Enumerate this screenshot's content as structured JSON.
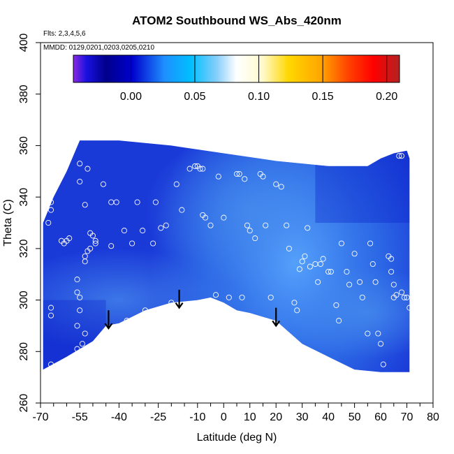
{
  "chart_data": {
    "type": "heatmap",
    "title": "ATOM2 Southbound WS_Abs_420nm",
    "annotations": {
      "flights": "Flts: 2,3,4,5,6",
      "dates": "MMDD: 0129,0201,0203,0205,0210"
    },
    "xlabel": "Latitude (deg N)",
    "ylabel": "Theta (C)",
    "xlim": [
      -70,
      80
    ],
    "ylim": [
      260,
      400
    ],
    "x_ticks": [
      -70,
      -55,
      -40,
      -25,
      -10,
      0,
      10,
      20,
      30,
      40,
      50,
      60,
      70,
      80
    ],
    "x_tick_labels": [
      "-70",
      "-55",
      "-40",
      "-25",
      "-10",
      "0",
      "10",
      "20",
      "30",
      "40",
      "50",
      "60",
      "70",
      "80"
    ],
    "x_minor_ticks": [
      -65,
      -60,
      -50,
      -45,
      -35,
      -30,
      -20,
      -15,
      -5,
      5,
      15,
      25,
      35,
      45,
      55,
      65,
      75
    ],
    "y_ticks": [
      260,
      280,
      300,
      320,
      340,
      360,
      380,
      400
    ],
    "y_tick_labels": [
      "260",
      "280",
      "300",
      "320",
      "340",
      "360",
      "380",
      "400"
    ],
    "colorbar": {
      "range": [
        -0.045,
        0.21
      ],
      "ticks": [
        0.0,
        0.05,
        0.1,
        0.15,
        0.2
      ],
      "tick_labels": [
        "0.00",
        "0.05",
        "0.10",
        "0.15",
        "0.20"
      ],
      "colors": [
        "#8a2be2",
        "#1a10e0",
        "#00008b",
        "#0000cd",
        "#1e90ff",
        "#00bfff",
        "#87cefa",
        "#ffffff",
        "#fffacd",
        "#ffd700",
        "#ffa500",
        "#ff4500",
        "#ff0000",
        "#b22222"
      ]
    },
    "field": {
      "base_color": "#1a3ad8",
      "light_region_color": "#3a8cf0",
      "upper_boundary": [
        [
          -69,
          330
        ],
        [
          -65,
          340
        ],
        [
          -60,
          350
        ],
        [
          -55,
          362
        ],
        [
          -50,
          362
        ],
        [
          -40,
          362
        ],
        [
          -20,
          360
        ],
        [
          0,
          357
        ],
        [
          20,
          354
        ],
        [
          40,
          352
        ],
        [
          55,
          352
        ],
        [
          60,
          355
        ],
        [
          65,
          357
        ],
        [
          70,
          358
        ],
        [
          71,
          355
        ]
      ],
      "lower_boundary": [
        [
          -69,
          273
        ],
        [
          -60,
          278
        ],
        [
          -50,
          284
        ],
        [
          -45,
          290
        ],
        [
          -40,
          291
        ],
        [
          -30,
          296
        ],
        [
          -20,
          299
        ],
        [
          -10,
          300
        ],
        [
          -5,
          301
        ],
        [
          0,
          299
        ],
        [
          5,
          296
        ],
        [
          10,
          295
        ],
        [
          20,
          292
        ],
        [
          30,
          283
        ],
        [
          40,
          278
        ],
        [
          50,
          273
        ],
        [
          60,
          272
        ],
        [
          71,
          272
        ]
      ]
    },
    "arrows": [
      {
        "latitude": -44,
        "theta": 296
      },
      {
        "latitude": -17,
        "theta": 304
      },
      {
        "latitude": 20,
        "theta": 297
      }
    ],
    "points": [
      [
        -66,
        338
      ],
      [
        -66,
        335
      ],
      [
        -67,
        330
      ],
      [
        -66,
        297
      ],
      [
        -66,
        294
      ],
      [
        -66,
        275
      ],
      [
        -62,
        323
      ],
      [
        -61,
        322
      ],
      [
        -60,
        323
      ],
      [
        -59,
        324
      ],
      [
        -56,
        308
      ],
      [
        -56,
        303
      ],
      [
        -55,
        301
      ],
      [
        -55,
        296
      ],
      [
        -56,
        290
      ],
      [
        -56,
        281
      ],
      [
        -54,
        283
      ],
      [
        -53,
        287
      ],
      [
        -55,
        353
      ],
      [
        -55,
        346
      ],
      [
        -52,
        351
      ],
      [
        -53,
        337
      ],
      [
        -51,
        326
      ],
      [
        -50,
        325
      ],
      [
        -49,
        323
      ],
      [
        -49,
        322
      ],
      [
        -51,
        320
      ],
      [
        -52,
        319
      ],
      [
        -53,
        315
      ],
      [
        -53,
        317
      ],
      [
        -46,
        345
      ],
      [
        -43,
        338
      ],
      [
        -41,
        338
      ],
      [
        -43,
        321
      ],
      [
        -38,
        327
      ],
      [
        -37,
        292
      ],
      [
        -35,
        322
      ],
      [
        -33,
        338
      ],
      [
        -31,
        327
      ],
      [
        -30,
        296
      ],
      [
        -27,
        322
      ],
      [
        -26,
        338
      ],
      [
        -24,
        328
      ],
      [
        -22,
        329
      ],
      [
        -20,
        299
      ],
      [
        -18,
        345
      ],
      [
        -16,
        335
      ],
      [
        -13,
        351
      ],
      [
        -11,
        352
      ],
      [
        -10,
        352
      ],
      [
        -9,
        351
      ],
      [
        -8,
        351
      ],
      [
        -8,
        333
      ],
      [
        -7,
        332
      ],
      [
        -5,
        329
      ],
      [
        -3,
        302
      ],
      [
        -2,
        348
      ],
      [
        0,
        332
      ],
      [
        2,
        301
      ],
      [
        5,
        349
      ],
      [
        6,
        349
      ],
      [
        8,
        347
      ],
      [
        9,
        329
      ],
      [
        7,
        301
      ],
      [
        10,
        327
      ],
      [
        12,
        324
      ],
      [
        14,
        349
      ],
      [
        15,
        348
      ],
      [
        16,
        329
      ],
      [
        18,
        301
      ],
      [
        20,
        345
      ],
      [
        22,
        344
      ],
      [
        24,
        329
      ],
      [
        25,
        320
      ],
      [
        27,
        299
      ],
      [
        28,
        296
      ],
      [
        29,
        312
      ],
      [
        30,
        315
      ],
      [
        31,
        317
      ],
      [
        32,
        328
      ],
      [
        33,
        313
      ],
      [
        35,
        314
      ],
      [
        36,
        307
      ],
      [
        37,
        314
      ],
      [
        38,
        316
      ],
      [
        40,
        311
      ],
      [
        41,
        311
      ],
      [
        43,
        298
      ],
      [
        44,
        292
      ],
      [
        45,
        322
      ],
      [
        47,
        311
      ],
      [
        48,
        306
      ],
      [
        50,
        318
      ],
      [
        52,
        307
      ],
      [
        53,
        301
      ],
      [
        55,
        287
      ],
      [
        56,
        322
      ],
      [
        57,
        314
      ],
      [
        58,
        307
      ],
      [
        59,
        287
      ],
      [
        60,
        283
      ],
      [
        61,
        275
      ],
      [
        63,
        317
      ],
      [
        64,
        316
      ],
      [
        64,
        311
      ],
      [
        65,
        306
      ],
      [
        65,
        301
      ],
      [
        66,
        302
      ],
      [
        67,
        356
      ],
      [
        68,
        356
      ],
      [
        68,
        303
      ],
      [
        69,
        301
      ],
      [
        70,
        301
      ],
      [
        71,
        297
      ]
    ]
  }
}
